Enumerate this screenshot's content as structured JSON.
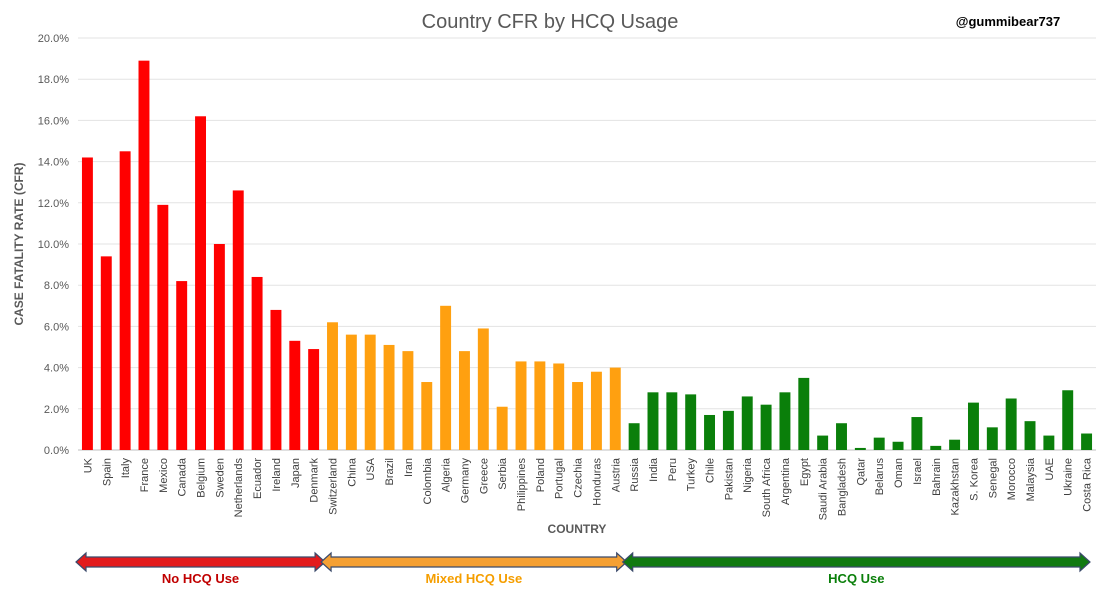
{
  "chart_data": {
    "type": "bar",
    "title": "Country CFR by HCQ Usage",
    "credit": "@gummibear737",
    "xlabel": "COUNTRY",
    "ylabel": "CASE FATALITY RATE (CFR)",
    "ylim": [
      0,
      20
    ],
    "yticks": [
      "0.0%",
      "2.0%",
      "4.0%",
      "6.0%",
      "8.0%",
      "10.0%",
      "12.0%",
      "14.0%",
      "16.0%",
      "18.0%",
      "20.0%"
    ],
    "grid": true,
    "categories": [
      "UK",
      "Spain",
      "Italy",
      "France",
      "Mexico",
      "Canada",
      "Belgium",
      "Sweden",
      "Netherlands",
      "Ecuador",
      "Ireland",
      "Japan",
      "Denmark",
      "Switzerland",
      "China",
      "USA",
      "Brazil",
      "Iran",
      "Colombia",
      "Algeria",
      "Germany",
      "Greece",
      "Serbia",
      "Philippines",
      "Poland",
      "Portugal",
      "Czechia",
      "Honduras",
      "Austria",
      "Russia",
      "India",
      "Peru",
      "Turkey",
      "Chile",
      "Pakistan",
      "Nigeria",
      "South Africa",
      "Argentina",
      "Egypt",
      "Saudi Arabia",
      "Bangladesh",
      "Qatar",
      "Belarus",
      "Oman",
      "Israel",
      "Bahrain",
      "Kazakhstan",
      "S. Korea",
      "Senegal",
      "Morocco",
      "Malaysia",
      "UAE",
      "Ukraine",
      "Costa Rica"
    ],
    "values": [
      14.2,
      9.4,
      14.5,
      18.9,
      11.9,
      8.2,
      16.2,
      10.0,
      12.6,
      8.4,
      6.8,
      5.3,
      4.9,
      6.2,
      5.6,
      5.6,
      5.1,
      4.8,
      3.3,
      7.0,
      4.8,
      5.9,
      2.1,
      4.3,
      4.3,
      4.2,
      3.3,
      3.8,
      4.0,
      1.3,
      2.8,
      2.8,
      2.7,
      1.7,
      1.9,
      2.6,
      2.2,
      2.8,
      3.5,
      0.7,
      1.3,
      0.1,
      0.6,
      0.4,
      1.6,
      0.2,
      0.5,
      2.3,
      1.1,
      2.5,
      1.4,
      0.7,
      2.9,
      0.8
    ],
    "groups": [
      {
        "name": "No HCQ Use",
        "count": 13,
        "color": "#ff0000",
        "arrow_color": "#e31a1c",
        "label_color": "#c00000"
      },
      {
        "name": "Mixed HCQ Use",
        "count": 16,
        "color": "#ffa010",
        "arrow_color": "#f5a033",
        "label_color": "#f59e00"
      },
      {
        "name": "HCQ Use",
        "count": 25,
        "color": "#0a7f0a",
        "arrow_color": "#117a11",
        "label_color": "#0a7f0a"
      }
    ]
  }
}
